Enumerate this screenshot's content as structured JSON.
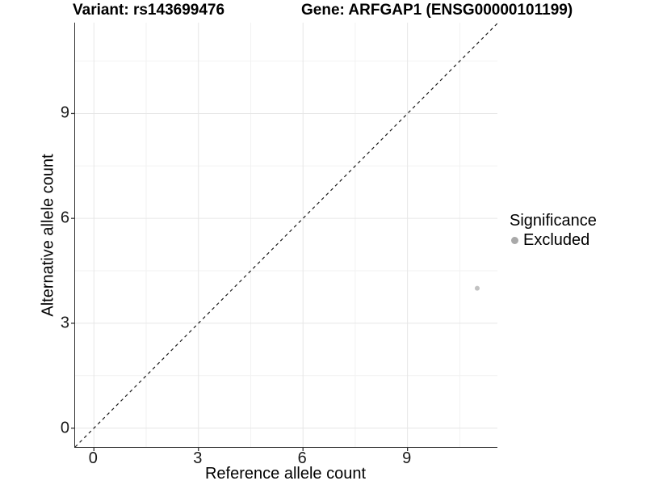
{
  "figure": {
    "title_left": "Variant: rs143699476",
    "title_right": "Gene: ARFGAP1 (ENSG00000101199)",
    "xlabel": "Reference allele count",
    "ylabel": "Alternative allele count",
    "legend": {
      "title": "Significance",
      "items": [
        {
          "label": "Excluded",
          "color": "#a9a9a9"
        }
      ]
    }
  },
  "chart_data": {
    "type": "scatter",
    "title": "Variant: rs143699476 / Gene: ARFGAP1 (ENSG00000101199)",
    "xlabel": "Reference allele count",
    "ylabel": "Alternative allele count",
    "xlim": [
      -0.54,
      11.58
    ],
    "ylim": [
      -0.54,
      11.6
    ],
    "x_major_ticks": [
      0,
      3,
      6,
      9
    ],
    "y_major_ticks": [
      0,
      3,
      6,
      9
    ],
    "x_minor_ticks": [
      1.5,
      4.5,
      7.5,
      10.5
    ],
    "y_minor_ticks": [
      1.5,
      4.5,
      7.5,
      10.5
    ],
    "grid": true,
    "legend_position": "right",
    "series": [
      {
        "name": "Excluded",
        "points": [
          {
            "x": 11,
            "y": 4
          }
        ],
        "color": "#c2c2c2",
        "point_radius": 3
      }
    ],
    "reference_line": {
      "type": "identity",
      "slope": 1,
      "intercept": 0,
      "style": "dashed",
      "color": "#1a1a1a"
    },
    "colors": {
      "background": "#ffffff",
      "grid_major": "#e6e6e6",
      "grid_minor": "#f2f2f2",
      "axis_line": "#333333",
      "tick_text": "#1a1a1a",
      "legend_key": "#a9a9a9"
    }
  }
}
